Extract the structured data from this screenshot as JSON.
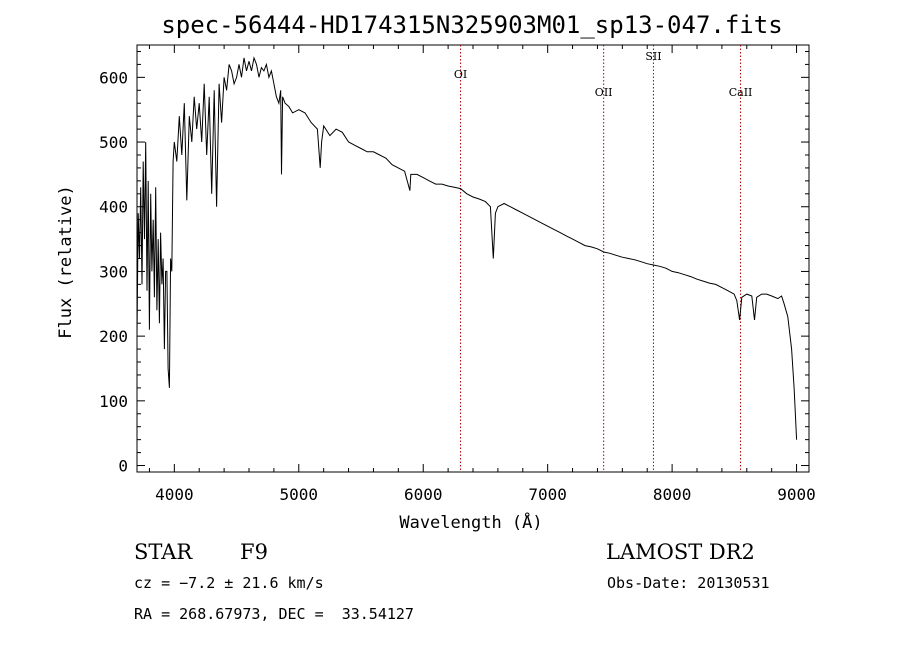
{
  "chart_data": {
    "type": "line",
    "title": "spec-56444-HD174315N325903M01_sp13-047.fits",
    "xlabel": "Wavelength (Å)",
    "ylabel": "Flux (relative)",
    "xlim": [
      3700,
      9100
    ],
    "ylim": [
      -10,
      650
    ],
    "xticks": [
      4000,
      5000,
      6000,
      7000,
      8000,
      9000
    ],
    "yticks": [
      0,
      100,
      200,
      300,
      400,
      500,
      600
    ],
    "grid": false,
    "series": [
      {
        "x": [
          3700,
          3710,
          3720,
          3730,
          3740,
          3750,
          3760,
          3770,
          3780,
          3790,
          3800,
          3810,
          3820,
          3830,
          3840,
          3850,
          3860,
          3870,
          3880,
          3890,
          3900,
          3910,
          3920,
          3930,
          3940,
          3950,
          3960,
          3970,
          3980,
          3990,
          4000,
          4020,
          4040,
          4060,
          4080,
          4100,
          4120,
          4140,
          4160,
          4180,
          4200,
          4220,
          4240,
          4260,
          4280,
          4300,
          4320,
          4340,
          4360,
          4380,
          4400,
          4420,
          4440,
          4460,
          4480,
          4500,
          4520,
          4540,
          4560,
          4580,
          4600,
          4620,
          4640,
          4660,
          4680,
          4700,
          4720,
          4740,
          4760,
          4780,
          4800,
          4820,
          4840,
          4855,
          4861,
          4870,
          4890,
          4920,
          4950,
          5000,
          5050,
          5100,
          5150,
          5172,
          5183,
          5200,
          5250,
          5300,
          5350,
          5400,
          5450,
          5500,
          5550,
          5600,
          5650,
          5700,
          5750,
          5800,
          5850,
          5893,
          5900,
          5950,
          6000,
          6050,
          6100,
          6150,
          6200,
          6250,
          6300,
          6350,
          6400,
          6450,
          6500,
          6540,
          6563,
          6580,
          6600,
          6650,
          6700,
          6750,
          6800,
          6850,
          6900,
          6950,
          7000,
          7050,
          7100,
          7150,
          7200,
          7250,
          7300,
          7350,
          7400,
          7450,
          7500,
          7550,
          7600,
          7650,
          7700,
          7750,
          7800,
          7850,
          7900,
          7950,
          8000,
          8050,
          8100,
          8150,
          8200,
          8250,
          8300,
          8350,
          8400,
          8450,
          8498,
          8520,
          8542,
          8560,
          8600,
          8640,
          8662,
          8680,
          8720,
          8760,
          8800,
          8850,
          8880,
          8900,
          8930,
          8960,
          8980,
          9000
        ],
        "y": [
          200,
          390,
          320,
          430,
          280,
          470,
          350,
          500,
          270,
          440,
          210,
          420,
          300,
          380,
          260,
          430,
          240,
          350,
          220,
          360,
          280,
          320,
          180,
          300,
          300,
          150,
          120,
          320,
          300,
          470,
          500,
          470,
          540,
          480,
          560,
          410,
          540,
          500,
          570,
          520,
          560,
          500,
          590,
          480,
          570,
          420,
          580,
          400,
          590,
          530,
          600,
          580,
          620,
          610,
          590,
          600,
          620,
          600,
          630,
          610,
          625,
          610,
          630,
          620,
          600,
          615,
          610,
          620,
          600,
          610,
          590,
          570,
          560,
          580,
          450,
          570,
          560,
          555,
          545,
          550,
          545,
          530,
          520,
          460,
          500,
          525,
          510,
          520,
          515,
          500,
          495,
          490,
          485,
          485,
          480,
          475,
          465,
          460,
          455,
          425,
          450,
          450,
          445,
          440,
          435,
          435,
          432,
          430,
          428,
          420,
          415,
          412,
          408,
          400,
          320,
          390,
          400,
          405,
          400,
          395,
          390,
          385,
          380,
          375,
          370,
          365,
          360,
          355,
          350,
          345,
          340,
          338,
          335,
          330,
          328,
          325,
          322,
          320,
          318,
          315,
          312,
          310,
          308,
          305,
          300,
          298,
          295,
          292,
          288,
          285,
          282,
          280,
          275,
          270,
          265,
          255,
          225,
          260,
          265,
          262,
          225,
          260,
          265,
          265,
          262,
          258,
          262,
          250,
          230,
          180,
          120,
          40
        ]
      }
    ],
    "annotations": [
      {
        "label": "OI",
        "x": 6300
      },
      {
        "label": "OII",
        "x": 7450
      },
      {
        "label": "SII",
        "x": 7850
      },
      {
        "label": "CaII",
        "x": 8550
      }
    ]
  },
  "info": {
    "class_label": "STAR",
    "subclass": "F9",
    "survey": "LAMOST DR2",
    "cz": "cz = −7.2 ± 21.6 km/s",
    "obs_date": "Obs-Date: 20130531",
    "coords": "RA = 268.67973, DEC =  33.54127"
  }
}
